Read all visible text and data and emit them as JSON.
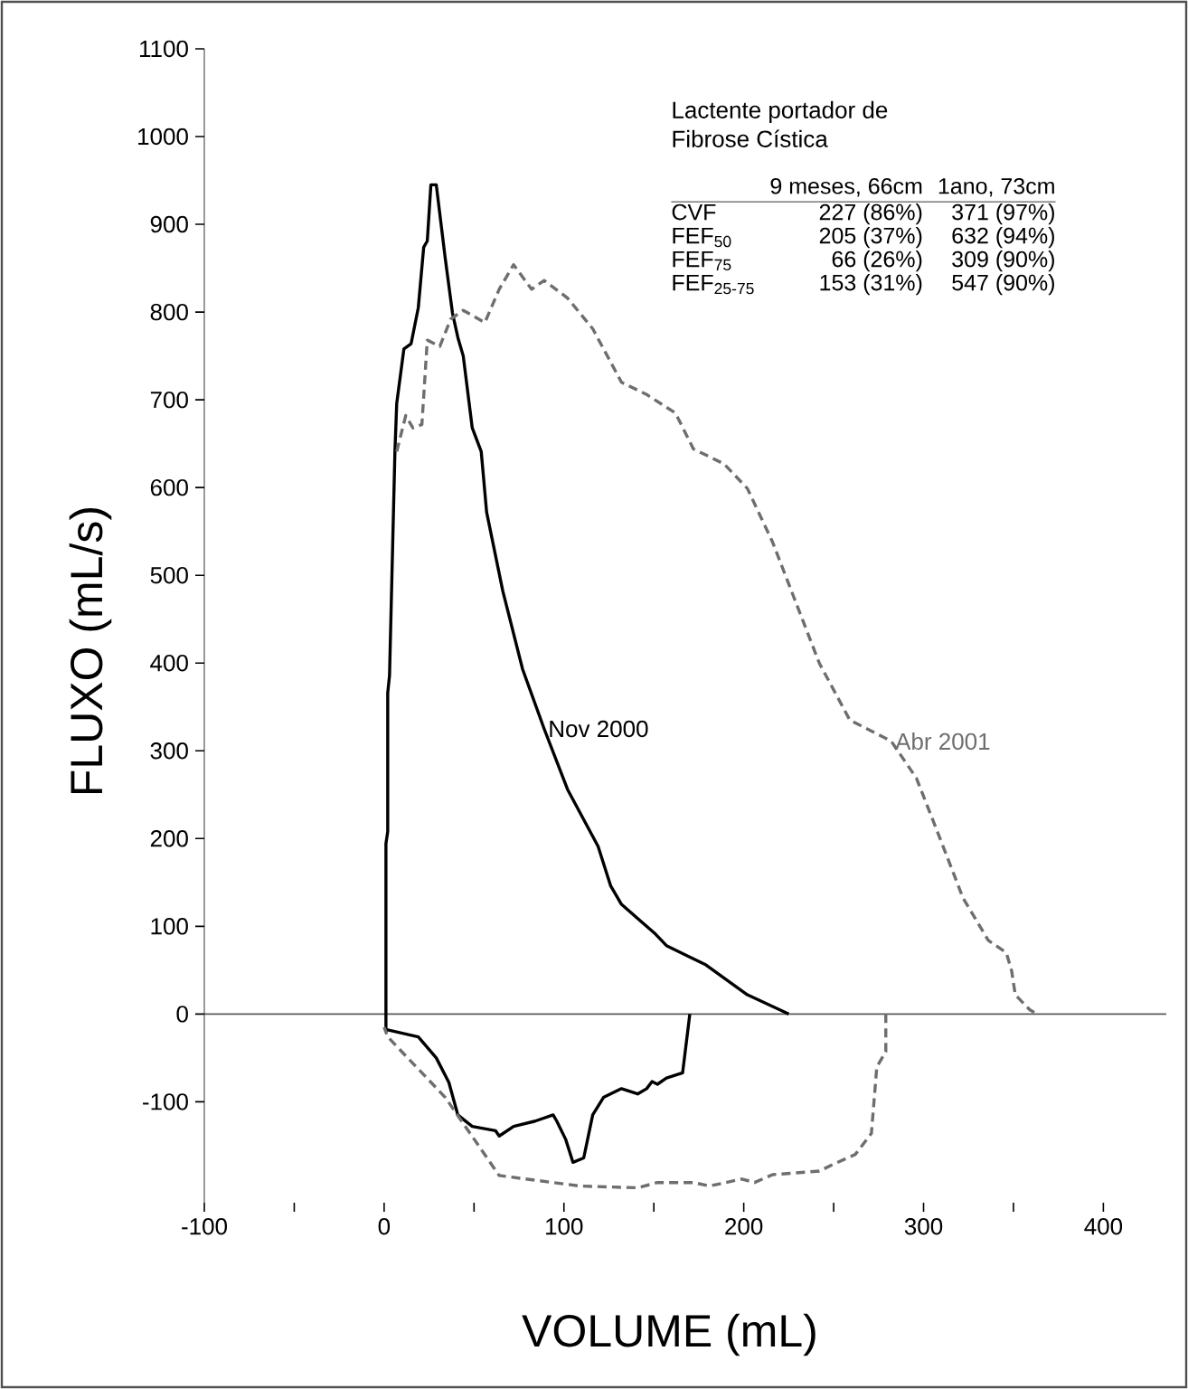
{
  "chart_data": {
    "type": "line",
    "xlabel": "VOLUME (mL)",
    "ylabel": "FLUXO (mL/s)",
    "xlim": [
      -100,
      435
    ],
    "ylim": [
      -215,
      1100
    ],
    "xticks": [
      -100,
      {
        "value": -50,
        "label": null
      },
      0,
      {
        "value": 50,
        "label": null
      },
      100,
      {
        "value": 150,
        "label": null
      },
      200,
      {
        "value": 250,
        "label": null
      },
      300,
      {
        "value": 350,
        "label": null
      },
      400
    ],
    "yticks": [
      -100,
      0,
      100,
      200,
      300,
      400,
      500,
      600,
      700,
      800,
      900,
      1000,
      1100
    ],
    "marker": "none",
    "ref_lines": [
      {
        "axis": "y",
        "value": 0,
        "color": "#5a5a5a"
      }
    ],
    "annotations": [
      "Lactente portador de Fibrose Cística",
      "9 meses, 66cm",
      "1ano, 73cm",
      "CVF",
      "227 (86%)",
      "371 (97%)",
      "FEF$_{50}$",
      "205 (37%)",
      "632 (94%)",
      "FEF$_{75}$",
      "66 (26%)",
      "309 (90%)",
      "FEF$_{25-75}$",
      "153 (31%)",
      "547 (90%)"
    ],
    "series": [
      {
        "name": "Nov 2000",
        "color": "#000000",
        "line_style": "solid",
        "x": [
          170,
          166,
          157,
          152,
          149,
          146,
          141,
          132,
          122,
          116,
          111,
          105,
          101,
          96,
          94,
          84,
          72,
          64,
          62,
          49,
          41,
          36,
          29,
          19,
          2,
          1,
          1,
          2,
          2,
          3,
          6,
          7,
          11,
          15,
          19,
          22,
          24,
          26,
          29,
          34,
          38,
          41,
          44,
          49,
          54,
          57,
          66,
          77,
          89,
          102,
          119,
          126,
          132,
          151,
          157,
          165,
          179,
          202,
          222,
          225
        ],
        "values": [
          0,
          -67,
          -73,
          -80,
          -77,
          -85,
          -91,
          -85,
          -95,
          -115,
          -164,
          -169,
          -143,
          -122,
          -115,
          -122,
          -128,
          -139,
          -133,
          -128,
          -115,
          -78,
          -50,
          -26,
          -18,
          -19,
          194,
          208,
          366,
          386,
          641,
          696,
          758,
          764,
          805,
          874,
          881,
          945,
          945,
          861,
          799,
          771,
          750,
          668,
          641,
          572,
          482,
          393,
          325,
          256,
          191,
          146,
          125,
          91,
          78,
          70,
          56,
          22,
          3,
          0
        ]
      },
      {
        "name": "Abr 2001",
        "color": "#6e6e6e",
        "line_style": "dashed",
        "x": [
          7,
          12,
          16,
          21,
          24,
          31,
          37,
          44,
          56,
          64,
          72,
          82,
          89,
          102,
          116,
          132,
          146,
          162,
          172,
          189,
          202,
          216,
          229,
          242,
          259,
          282,
          296,
          309,
          322,
          336,
          346,
          349,
          351,
          359,
          363,
          null,
          279,
          279,
          274,
          271,
          262,
          249,
          242,
          216,
          206,
          199,
          181,
          172,
          152,
          141,
          109,
          64,
          34,
          2,
          0
        ],
        "values": [
          641,
          682,
          668,
          672,
          768,
          761,
          792,
          802,
          788,
          826,
          854,
          826,
          836,
          816,
          781,
          720,
          706,
          685,
          644,
          627,
          599,
          538,
          469,
          400,
          335,
          311,
          269,
          201,
          132,
          84,
          70,
          49,
          22,
          5,
          0,
          null,
          0,
          -43,
          -60,
          -136,
          -160,
          -172,
          -179,
          -183,
          -192,
          -188,
          -196,
          -192,
          -192,
          -198,
          -196,
          -184,
          -95,
          -26,
          -15
        ]
      }
    ]
  }
}
